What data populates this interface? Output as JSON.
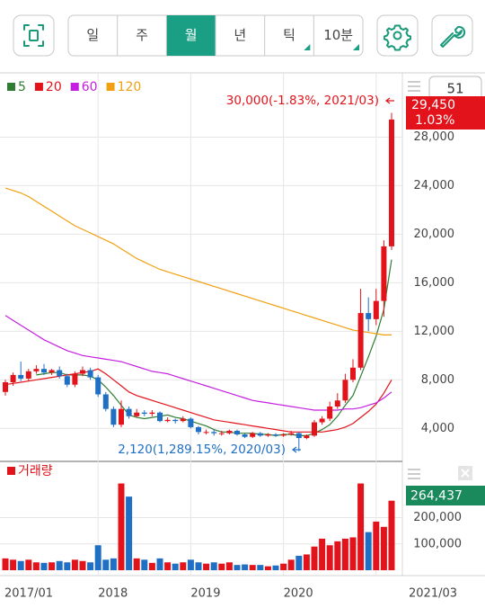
{
  "toolbar": {
    "periods": [
      "일",
      "주",
      "월",
      "년",
      "틱",
      "10분"
    ],
    "active": 2
  },
  "counter": "51",
  "chart_data": [
    {
      "type": "candlestick",
      "categories": [
        "2017/01",
        null,
        null,
        null,
        null,
        null,
        null,
        null,
        null,
        null,
        null,
        null,
        "2018",
        null,
        null,
        null,
        null,
        null,
        null,
        null,
        null,
        null,
        null,
        null,
        "2019",
        null,
        null,
        null,
        null,
        null,
        null,
        null,
        null,
        null,
        null,
        null,
        "2020",
        null,
        null,
        null,
        null,
        null,
        null,
        null,
        null,
        null,
        null,
        null,
        null,
        null,
        "2021/03"
      ],
      "open": [
        7000,
        7800,
        8400,
        8100,
        8700,
        8900,
        8600,
        8800,
        8300,
        7600,
        8500,
        8800,
        8200,
        6800,
        5600,
        4300,
        5600,
        5000,
        5300,
        5200,
        5300,
        4600,
        4700,
        4600,
        4800,
        4100,
        3700,
        3700,
        3600,
        3600,
        3800,
        3500,
        3300,
        3600,
        3400,
        3500,
        3400,
        3500,
        3600,
        3200,
        3400,
        4500,
        4800,
        5800,
        6300,
        8000,
        9000,
        13500,
        13000,
        14500,
        19000
      ],
      "high": [
        8000,
        8600,
        9500,
        8900,
        9200,
        9300,
        8900,
        9100,
        8500,
        8700,
        9100,
        9000,
        8400,
        7000,
        5800,
        6300,
        5800,
        5600,
        5500,
        5500,
        5400,
        4900,
        4800,
        5000,
        4900,
        4200,
        3900,
        3900,
        3800,
        3900,
        3900,
        3600,
        3700,
        3700,
        3600,
        3600,
        3600,
        3800,
        3700,
        3500,
        4700,
        5000,
        6200,
        6900,
        8500,
        9700,
        15500,
        14800,
        15500,
        19500,
        30000
      ],
      "low": [
        6700,
        7500,
        7900,
        7900,
        8500,
        8400,
        8400,
        8100,
        7400,
        7400,
        8300,
        8000,
        6600,
        5400,
        4100,
        4100,
        4800,
        4900,
        5000,
        5000,
        4500,
        4500,
        4400,
        4500,
        4000,
        3500,
        3500,
        3400,
        3400,
        3500,
        3400,
        3200,
        3200,
        3300,
        3300,
        3300,
        3300,
        3400,
        2120,
        3100,
        3300,
        4300,
        4600,
        5600,
        6100,
        7800,
        8800,
        12000,
        12500,
        13200,
        18700
      ],
      "close": [
        7800,
        8400,
        8100,
        8700,
        8900,
        8600,
        8800,
        8300,
        7600,
        8500,
        8800,
        8200,
        6800,
        5600,
        4300,
        5600,
        5000,
        5300,
        5200,
        5300,
        4600,
        4700,
        4600,
        4800,
        4100,
        3700,
        3700,
        3600,
        3600,
        3800,
        3500,
        3300,
        3600,
        3400,
        3500,
        3400,
        3500,
        3600,
        3200,
        3400,
        4500,
        4800,
        5800,
        6300,
        8000,
        9000,
        13500,
        13000,
        14500,
        19000,
        29450
      ],
      "up_color": "#e3131b",
      "down_color": "#1f6fc5",
      "series": [
        {
          "name": "5",
          "color": "#2e7d32",
          "values": [
            null,
            null,
            null,
            null,
            8400,
            8500,
            8600,
            8600,
            8400,
            8400,
            8400,
            8300,
            8000,
            7400,
            6700,
            5900,
            5100,
            4900,
            4800,
            4900,
            5000,
            5100,
            4900,
            4800,
            4600,
            4400,
            4200,
            3900,
            3700,
            3700,
            3600,
            3600,
            3600,
            3500,
            3500,
            3400,
            3500,
            3500,
            3400,
            3400,
            3600,
            3900,
            4300,
            5000,
            5900,
            6700,
            8300,
            9900,
            11600,
            13800,
            17900
          ]
        },
        {
          "name": "20",
          "color": "#e3131b",
          "values": [
            7600,
            7700,
            7800,
            7900,
            8000,
            8100,
            8200,
            8300,
            8400,
            8500,
            8600,
            8700,
            8900,
            8500,
            8000,
            7500,
            7000,
            6700,
            6500,
            6300,
            6100,
            5900,
            5700,
            5500,
            5300,
            5100,
            4900,
            4700,
            4600,
            4500,
            4400,
            4300,
            4200,
            4100,
            4000,
            3900,
            3800,
            3700,
            3700,
            3700,
            3700,
            3700,
            3800,
            3900,
            4100,
            4400,
            4900,
            5400,
            6000,
            6900,
            8000
          ]
        },
        {
          "name": "60",
          "color": "#c41fe0",
          "values": [
            13300,
            12900,
            12500,
            12100,
            11700,
            11300,
            11000,
            10700,
            10400,
            10200,
            10000,
            9900,
            9800,
            9700,
            9600,
            9500,
            9300,
            9100,
            8900,
            8700,
            8600,
            8500,
            8300,
            8100,
            7900,
            7700,
            7500,
            7300,
            7100,
            6900,
            6700,
            6500,
            6300,
            6200,
            6100,
            6000,
            5900,
            5800,
            5700,
            5600,
            5500,
            5500,
            5500,
            5500,
            5600,
            5600,
            5700,
            5900,
            6100,
            6500,
            7000
          ]
        },
        {
          "name": "120",
          "color": "#f0a010",
          "values": [
            23800,
            23600,
            23400,
            23100,
            22700,
            22300,
            21900,
            21500,
            21100,
            20700,
            20400,
            20100,
            19800,
            19500,
            19200,
            18800,
            18400,
            18000,
            17700,
            17400,
            17100,
            16900,
            16700,
            16500,
            16300,
            16100,
            15900,
            15700,
            15500,
            15300,
            15100,
            14900,
            14700,
            14500,
            14300,
            14100,
            13900,
            13700,
            13500,
            13300,
            13100,
            12900,
            12700,
            12500,
            12300,
            12100,
            12000,
            11900,
            11800,
            11700,
            11700
          ]
        }
      ],
      "ylim": [
        1500,
        33000
      ],
      "yticks": [
        {
          "value": 4000,
          "label": "4,000"
        },
        {
          "value": 8000,
          "label": "8,000"
        },
        {
          "value": 12000,
          "label": "12,000"
        },
        {
          "value": 16000,
          "label": "16,000"
        },
        {
          "value": 20000,
          "label": "20,000"
        },
        {
          "value": 24000,
          "label": "24,000"
        },
        {
          "value": 28000,
          "label": "28,000"
        }
      ],
      "grid": true,
      "high_label": "30,000(-1.83%, 2021/03)",
      "low_label": "2,120(1,289.15%, 2020/03)",
      "current_price": {
        "value": 29450,
        "label": "29,450"
      },
      "current_change": {
        "value": 1.03,
        "label": "1.03%"
      }
    },
    {
      "type": "bar",
      "title": "거래량",
      "color": "#e3131b",
      "values": [
        45000,
        40000,
        35000,
        40000,
        30000,
        28000,
        30000,
        35000,
        30000,
        40000,
        35000,
        30000,
        95000,
        40000,
        45000,
        330000,
        280000,
        45000,
        40000,
        28000,
        45000,
        30000,
        25000,
        30000,
        40000,
        30000,
        25000,
        30000,
        25000,
        30000,
        20000,
        22000,
        20000,
        20000,
        15000,
        18000,
        25000,
        40000,
        55000,
        60000,
        90000,
        120000,
        95000,
        110000,
        120000,
        125000,
        330000,
        145000,
        185000,
        165000,
        264437
      ],
      "ylim": [
        0,
        390000
      ],
      "yticks": [
        {
          "value": 100000,
          "label": "100,000"
        },
        {
          "value": 200000,
          "label": "200,000"
        }
      ],
      "grid": true,
      "current": {
        "value": 264437,
        "label": "264,437"
      },
      "current_color": "#1a8a5c"
    }
  ]
}
